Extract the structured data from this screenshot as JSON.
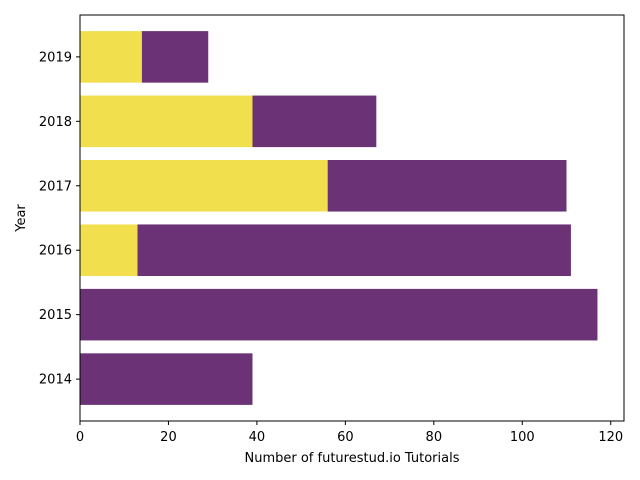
{
  "chart_data": {
    "type": "bar",
    "orientation": "horizontal",
    "stacked": true,
    "categories": [
      "2014",
      "2015",
      "2016",
      "2017",
      "2018",
      "2019"
    ],
    "series": [
      {
        "values": [
          0,
          0,
          13,
          56,
          39,
          14
        ],
        "color": "#f1df4e"
      },
      {
        "values": [
          39,
          117,
          98,
          54,
          28,
          15
        ],
        "color": "#6b3376"
      }
    ],
    "xlabel": "Number of futurestud.io Tutorials",
    "ylabel": "Year",
    "xlim": [
      0,
      123
    ],
    "xticks": [
      0,
      20,
      40,
      60,
      80,
      100,
      120
    ],
    "grid": false,
    "legend": "none"
  }
}
